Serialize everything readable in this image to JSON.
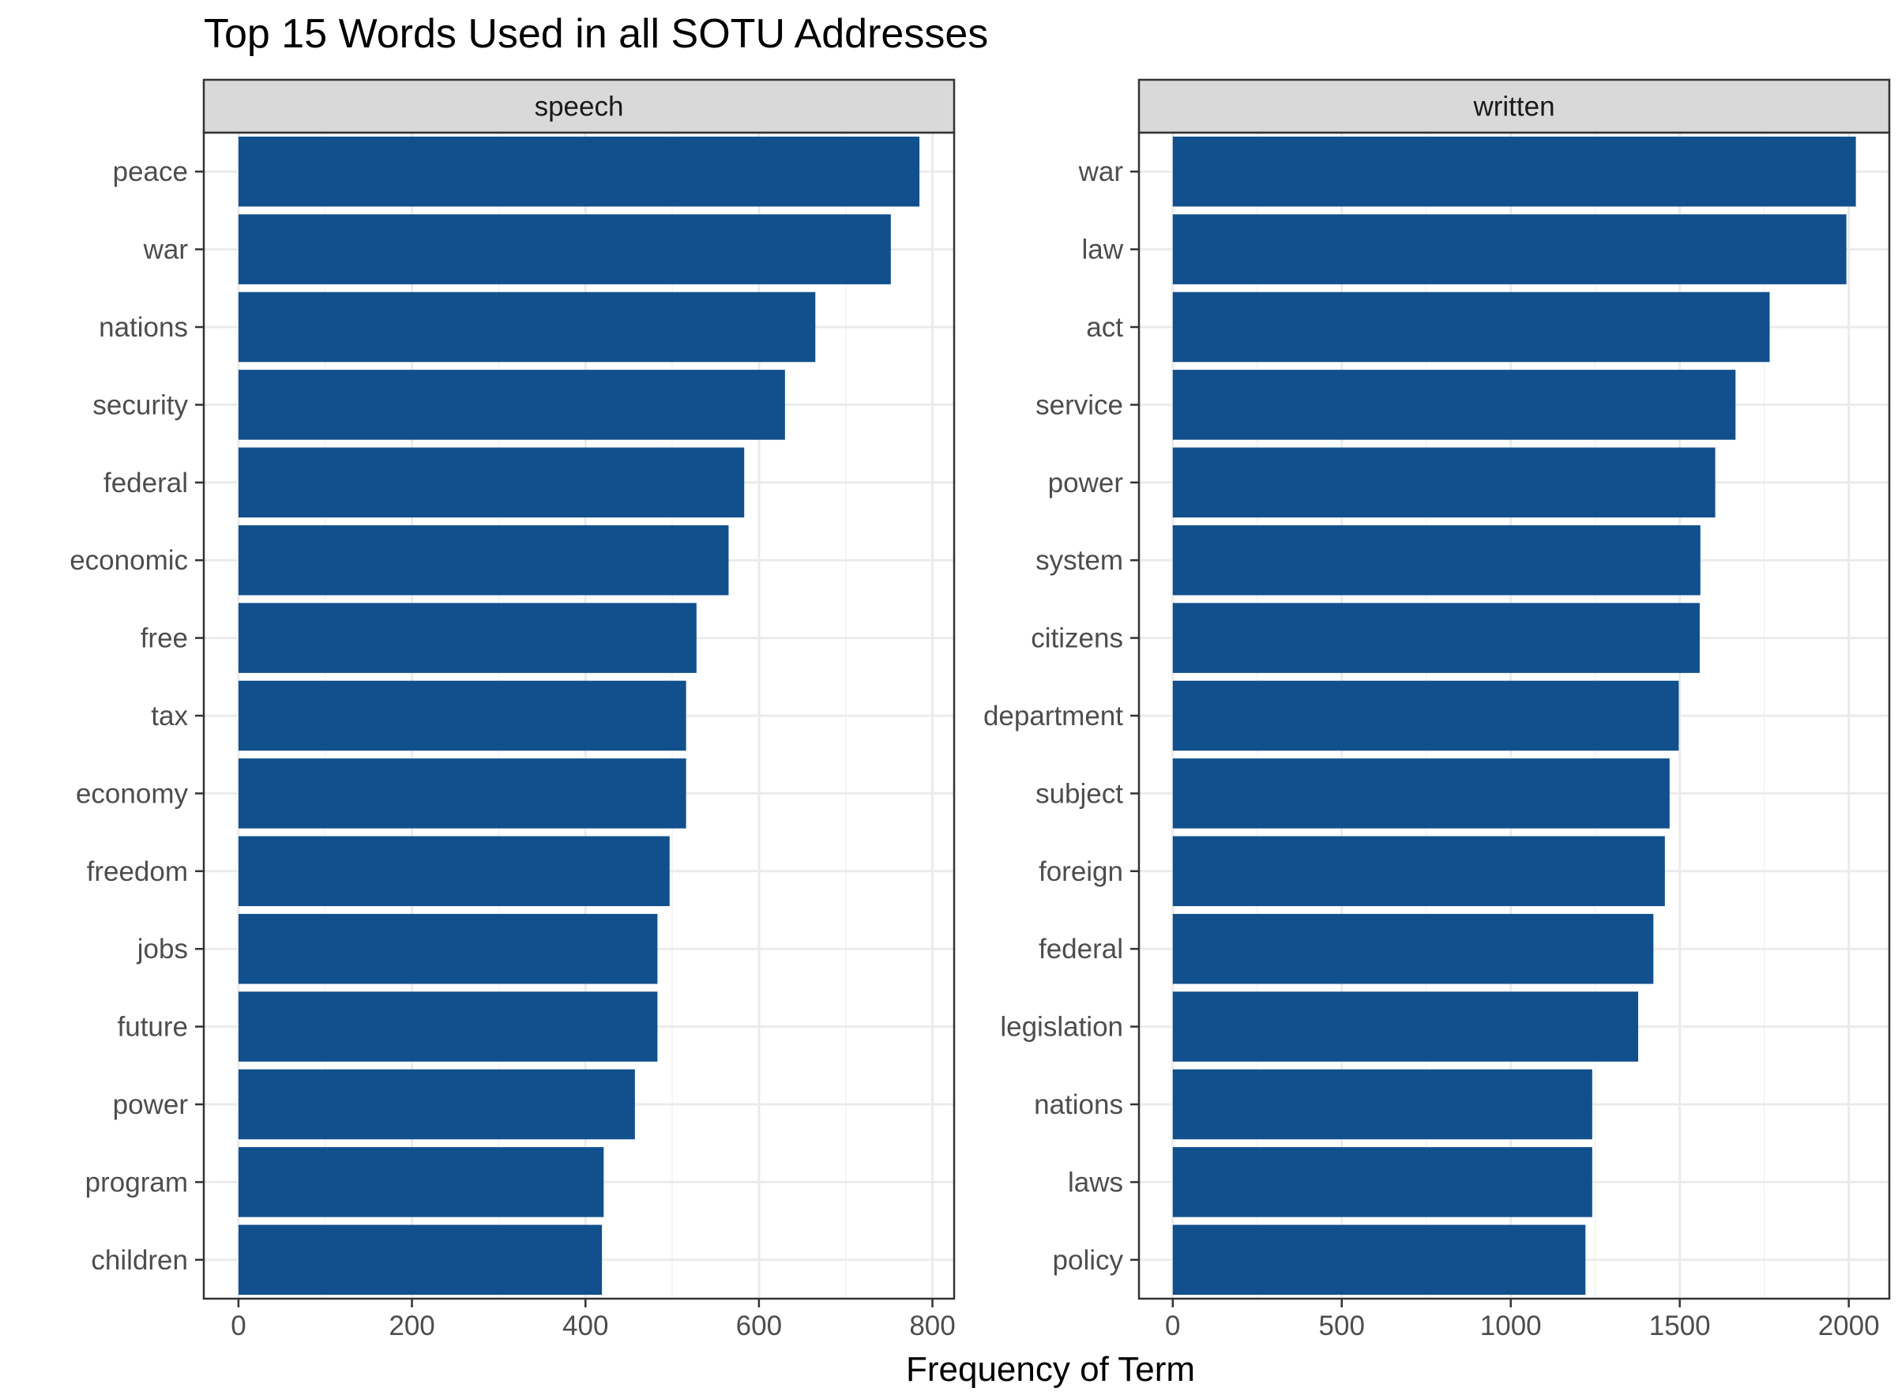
{
  "chart_data": {
    "type": "bar",
    "orientation": "horizontal",
    "title": "Top 15 Words Used in all SOTU Addresses",
    "xlabel": "Frequency of Term",
    "ylabel": "",
    "grid": true,
    "bar_color": "#11508C",
    "panels": [
      {
        "name": "speech",
        "xlim": [
          -40,
          825
        ],
        "xticks": [
          0,
          200,
          400,
          600,
          800
        ],
        "categories": [
          "peace",
          "war",
          "nations",
          "security",
          "federal",
          "economic",
          "free",
          "tax",
          "economy",
          "freedom",
          "jobs",
          "future",
          "power",
          "program",
          "children"
        ],
        "values": [
          785,
          752,
          665,
          630,
          583,
          565,
          528,
          516,
          516,
          497,
          483,
          483,
          457,
          421,
          419
        ]
      },
      {
        "name": "written",
        "xlim": [
          -100,
          2120
        ],
        "xticks": [
          0,
          500,
          1000,
          1500,
          2000
        ],
        "categories": [
          "war",
          "law",
          "act",
          "service",
          "power",
          "system",
          "citizens",
          "department",
          "subject",
          "foreign",
          "federal",
          "legislation",
          "nations",
          "laws",
          "policy"
        ],
        "values": [
          2021,
          1993,
          1766,
          1665,
          1605,
          1561,
          1559,
          1497,
          1470,
          1456,
          1422,
          1377,
          1241,
          1241,
          1221
        ]
      }
    ]
  }
}
